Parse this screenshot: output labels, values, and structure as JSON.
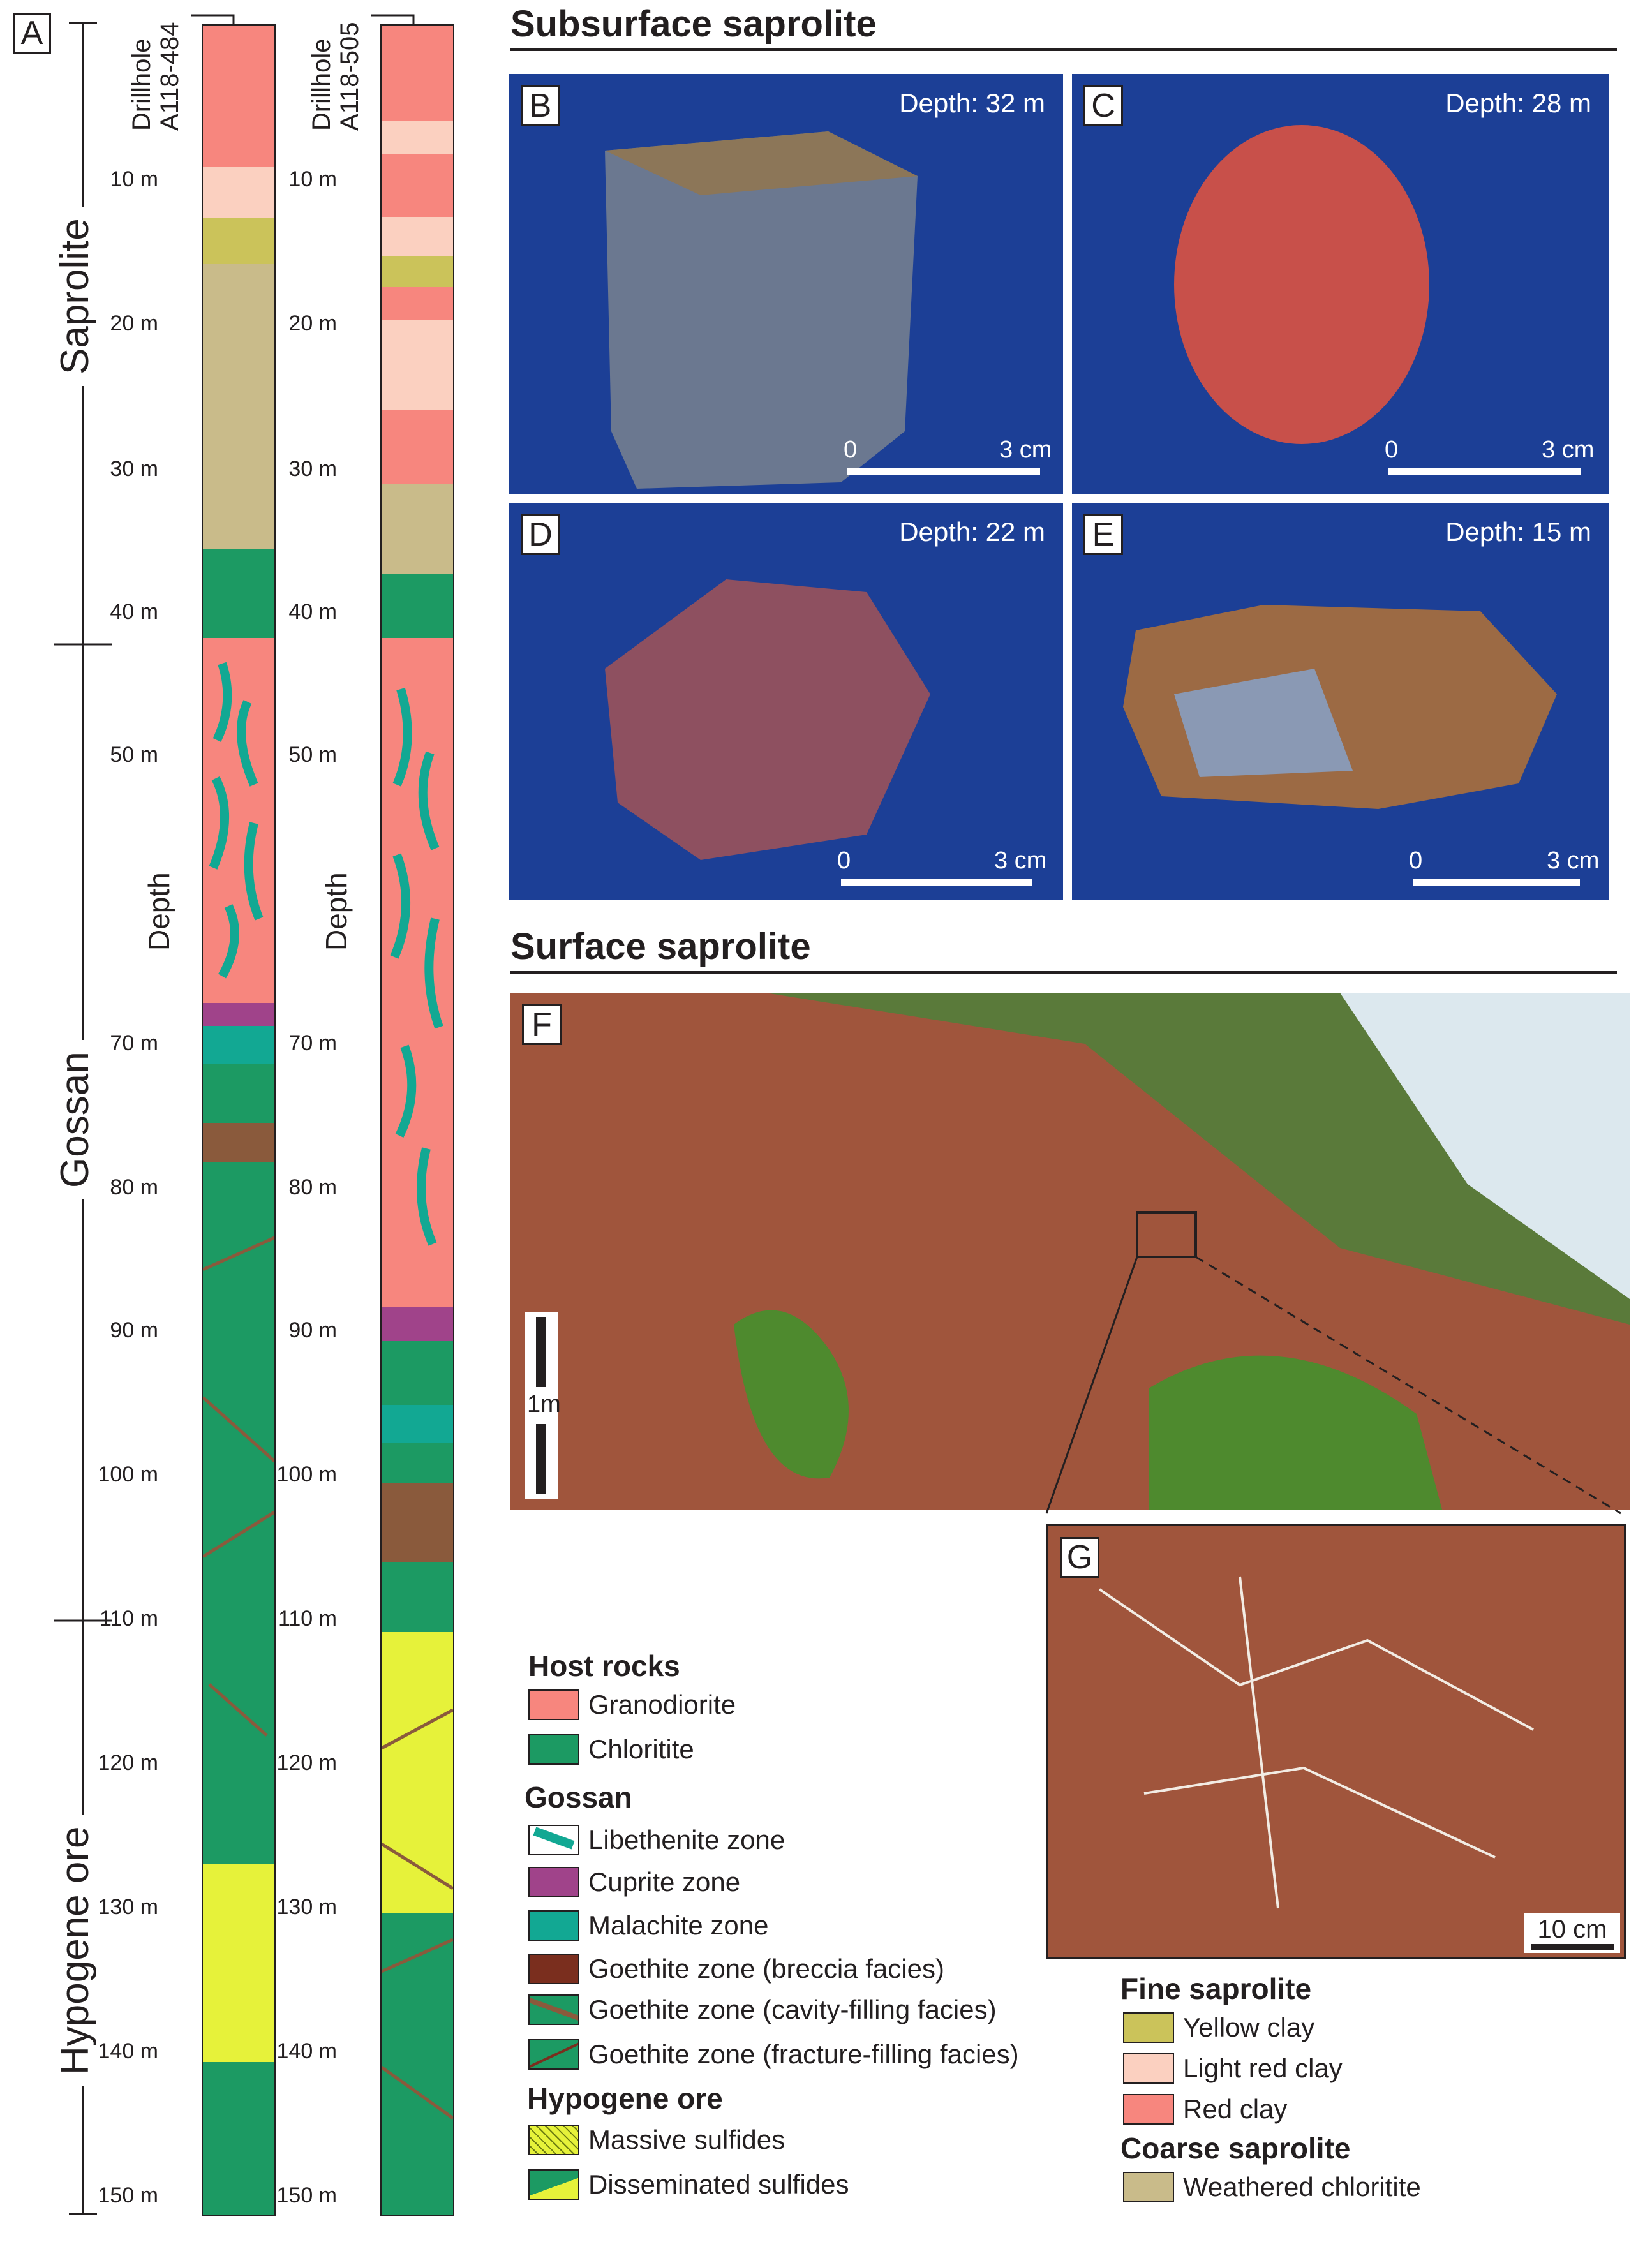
{
  "panel_a": {
    "letter": "A",
    "zones": [
      "Saprolite",
      "Gossan",
      "Hypogene ore"
    ],
    "depth_axis_label": "Depth",
    "drillholes": [
      {
        "line1": "Drillhole",
        "line2": "A118-484"
      },
      {
        "line1": "Drillhole",
        "line2": "A118-505"
      }
    ],
    "depth_ticks": [
      "10 m",
      "20 m",
      "30 m",
      "40 m",
      "50 m",
      "70 m",
      "80 m",
      "90 m",
      "100 m",
      "110 m",
      "120 m",
      "130 m",
      "140 m",
      "150 m"
    ]
  },
  "subsurface": {
    "title": "Subsurface saprolite",
    "photos": [
      {
        "tag": "B",
        "depth": "Depth: 32 m",
        "scale_start": "0",
        "scale_end": "3 cm"
      },
      {
        "tag": "C",
        "depth": "Depth: 28 m",
        "scale_start": "0",
        "scale_end": "3 cm"
      },
      {
        "tag": "D",
        "depth": "Depth: 22 m",
        "scale_start": "0",
        "scale_end": "3 cm"
      },
      {
        "tag": "E",
        "depth": "Depth: 15 m",
        "scale_start": "0",
        "scale_end": "3 cm"
      }
    ]
  },
  "surface": {
    "title": "Surface saprolite",
    "photo_f": {
      "tag": "F",
      "scale": "1m"
    },
    "photo_g": {
      "tag": "G",
      "scale": "10 cm"
    }
  },
  "legend": {
    "host_rocks": {
      "title": "Host rocks",
      "items": [
        "Granodiorite",
        "Chloritite"
      ]
    },
    "gossan": {
      "title": "Gossan",
      "items": [
        "Libethenite zone",
        "Cuprite zone",
        "Malachite zone",
        "Goethite zone (breccia facies)",
        "Goethite zone (cavity-filling facies)",
        "Goethite zone (fracture-filling facies)"
      ]
    },
    "hypogene": {
      "title": "Hypogene ore",
      "items": [
        "Massive sulfides",
        "Disseminated sulfides"
      ]
    },
    "fine_saprolite": {
      "title": "Fine saprolite",
      "items": [
        "Yellow clay",
        "Light red clay",
        "Red clay"
      ]
    },
    "coarse_saprolite": {
      "title": "Coarse saprolite",
      "items": [
        "Weathered chloritite"
      ]
    }
  },
  "colors": {
    "granodiorite": "#f7867e",
    "chloritite": "#1c9a63",
    "cuprite": "#a0438a",
    "malachite": "#12a893",
    "goethite": "#8a5a3c",
    "yellow_clay": "#cbc35a",
    "light_red_clay": "#fbd0c0",
    "red_clay": "#f7867e",
    "weathered_chloritite": "#c9bb8a",
    "sulfides": "#e6f23a",
    "photo_bg": "#1c3f96"
  }
}
